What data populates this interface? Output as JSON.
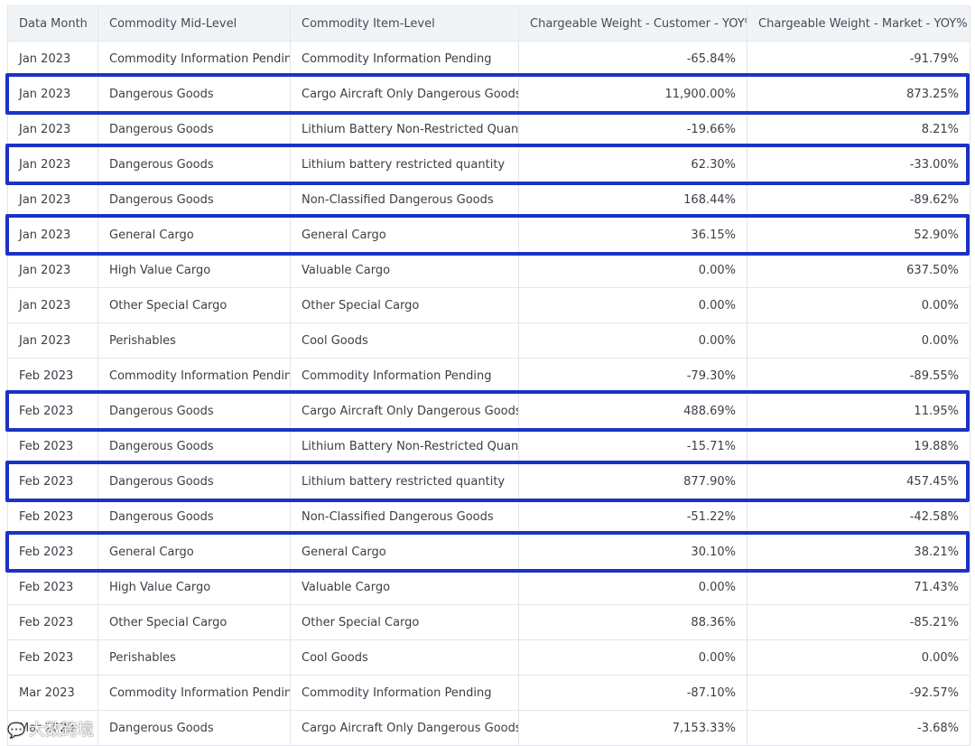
{
  "table": {
    "columns": [
      "Data Month",
      "Commodity Mid-Level",
      "Commodity Item-Level",
      "Chargeable Weight - Customer - YOY%",
      "Chargeable Weight - Market - YOY%"
    ],
    "rows": [
      [
        "Jan 2023",
        "Commodity Information Pending",
        "Commodity Information Pending",
        "-65.84%",
        "-91.79%"
      ],
      [
        "Jan 2023",
        "Dangerous Goods",
        "Cargo Aircraft Only Dangerous Goods",
        "11,900.00%",
        "873.25%"
      ],
      [
        "Jan 2023",
        "Dangerous Goods",
        "Lithium Battery Non-Restricted Quantity",
        "-19.66%",
        "8.21%"
      ],
      [
        "Jan 2023",
        "Dangerous Goods",
        "Lithium battery restricted quantity",
        "62.30%",
        "-33.00%"
      ],
      [
        "Jan 2023",
        "Dangerous Goods",
        "Non-Classified Dangerous Goods",
        "168.44%",
        "-89.62%"
      ],
      [
        "Jan 2023",
        "General Cargo",
        "General Cargo",
        "36.15%",
        "52.90%"
      ],
      [
        "Jan 2023",
        "High Value Cargo",
        "Valuable Cargo",
        "0.00%",
        "637.50%"
      ],
      [
        "Jan 2023",
        "Other Special Cargo",
        "Other Special Cargo",
        "0.00%",
        "0.00%"
      ],
      [
        "Jan 2023",
        "Perishables",
        "Cool Goods",
        "0.00%",
        "0.00%"
      ],
      [
        "Feb 2023",
        "Commodity Information Pending",
        "Commodity Information Pending",
        "-79.30%",
        "-89.55%"
      ],
      [
        "Feb 2023",
        "Dangerous Goods",
        "Cargo Aircraft Only Dangerous Goods",
        "488.69%",
        "11.95%"
      ],
      [
        "Feb 2023",
        "Dangerous Goods",
        "Lithium Battery Non-Restricted Quantity",
        "-15.71%",
        "19.88%"
      ],
      [
        "Feb 2023",
        "Dangerous Goods",
        "Lithium battery restricted quantity",
        "877.90%",
        "457.45%"
      ],
      [
        "Feb 2023",
        "Dangerous Goods",
        "Non-Classified Dangerous Goods",
        "-51.22%",
        "-42.58%"
      ],
      [
        "Feb 2023",
        "General Cargo",
        "General Cargo",
        "30.10%",
        "38.21%"
      ],
      [
        "Feb 2023",
        "High Value Cargo",
        "Valuable Cargo",
        "0.00%",
        "71.43%"
      ],
      [
        "Feb 2023",
        "Other Special Cargo",
        "Other Special Cargo",
        "88.36%",
        "-85.21%"
      ],
      [
        "Feb 2023",
        "Perishables",
        "Cool Goods",
        "0.00%",
        "0.00%"
      ],
      [
        "Mar 2023",
        "Commodity Information Pending",
        "Commodity Information Pending",
        "-87.10%",
        "-92.57%"
      ],
      [
        "Mar 2023",
        "Dangerous Goods",
        "Cargo Aircraft Only Dangerous Goods",
        "7,153.33%",
        "-3.68%"
      ]
    ],
    "highlighted_rows": [
      1,
      3,
      5,
      10,
      12,
      14
    ]
  },
  "watermark": {
    "logo_text": "大数跨境",
    "icon": "wechat-icon"
  },
  "colors": {
    "highlight_border": "#1a33c4",
    "header_bg": "#f1f4f7",
    "grid": "#e2e5ea"
  }
}
